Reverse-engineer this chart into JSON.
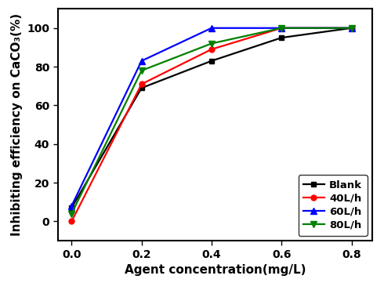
{
  "x": [
    0.0,
    0.2,
    0.4,
    0.6,
    0.8
  ],
  "series": [
    {
      "label": "Blank",
      "color": "#000000",
      "marker": "s",
      "markersize": 5,
      "y": [
        7,
        69,
        83,
        95,
        100
      ]
    },
    {
      "label": "40L/h",
      "color": "#ff0000",
      "marker": "o",
      "markersize": 5,
      "y": [
        0,
        71,
        89,
        100,
        100
      ]
    },
    {
      "label": "60L/h",
      "color": "#0000ff",
      "marker": "^",
      "markersize": 6,
      "y": [
        8,
        83,
        100,
        100,
        100
      ]
    },
    {
      "label": "80L/h",
      "color": "#008000",
      "marker": "v",
      "markersize": 6,
      "y": [
        4,
        78,
        92,
        100,
        100
      ]
    }
  ],
  "xlabel": "Agent concentration(mg/L)",
  "ylabel": "Inhibiting efficiency on CaCO₃(%)",
  "xlim": [
    -0.04,
    0.86
  ],
  "ylim": [
    -10,
    110
  ],
  "yticks": [
    0,
    20,
    40,
    60,
    80,
    100
  ],
  "xticks": [
    0.0,
    0.2,
    0.4,
    0.6,
    0.8
  ],
  "legend_loc": "lower right",
  "linewidth": 1.6,
  "font_size_label": 11,
  "font_size_tick": 10,
  "font_size_legend": 9.5
}
